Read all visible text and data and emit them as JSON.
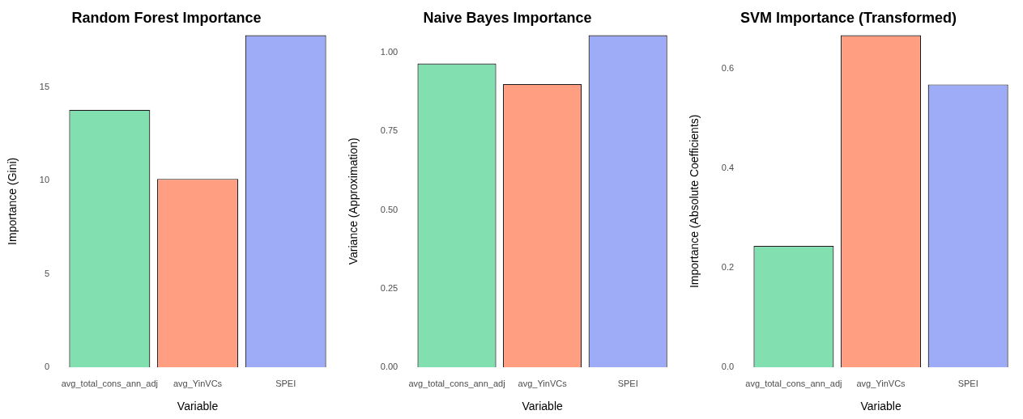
{
  "chart_data": [
    {
      "type": "bar",
      "title": "Random Forest Importance",
      "xlabel": "Variable",
      "ylabel": "Importance (Gini)",
      "categories": [
        "avg_total_cons_ann_adj",
        "avg_YinVCs",
        "SPEI"
      ],
      "values": [
        13.8,
        10.1,
        17.8
      ],
      "colors": [
        "#82e0b0",
        "#ff9e80",
        "#9eabf7"
      ],
      "ylim": [
        0,
        17.8
      ],
      "yticks": [
        0,
        5,
        10,
        15
      ],
      "grid": false,
      "legend": false
    },
    {
      "type": "bar",
      "title": "Naive Bayes Importance",
      "xlabel": "Variable",
      "ylabel": "Variance (Approximation)",
      "categories": [
        "avg_total_cons_ann_adj",
        "avg_YinVCs",
        "SPEI"
      ],
      "values": [
        0.965,
        0.9,
        1.055
      ],
      "colors": [
        "#82e0b0",
        "#ff9e80",
        "#9eabf7"
      ],
      "ylim": [
        0,
        1.055
      ],
      "yticks": [
        {
          "value": 0,
          "label": "0.00"
        },
        0.25,
        {
          "value": 0.5,
          "label": "0.50"
        },
        0.75,
        {
          "value": 1,
          "label": "1.00"
        }
      ],
      "grid": false,
      "legend": false
    },
    {
      "type": "bar",
      "title": "SVM Importance (Transformed)",
      "xlabel": "Variable",
      "ylabel": "Importance (Absolute Coefficients)",
      "categories": [
        "avg_total_cons_ann_adj",
        "avg_YinVCs",
        "SPEI"
      ],
      "values": [
        0.244,
        0.668,
        0.569
      ],
      "colors": [
        "#82e0b0",
        "#ff9e80",
        "#9eabf7"
      ],
      "ylim": [
        0,
        0.668
      ],
      "yticks": [
        {
          "value": 0,
          "label": "0.0"
        },
        0.2,
        0.4,
        0.6
      ],
      "grid": false,
      "legend": false
    }
  ]
}
